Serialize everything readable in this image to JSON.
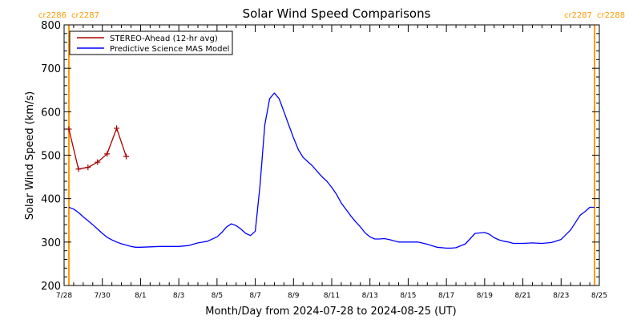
{
  "chart_data": {
    "type": "line",
    "title": "Solar Wind Speed Comparisons",
    "xlabel": "Month/Day from 2024-07-28 to 2024-08-25 (UT)",
    "ylabel": "Solar Wind Speed (km/s)",
    "xlim": [
      0,
      28
    ],
    "ylim": [
      200,
      800
    ],
    "yticks": [
      200,
      300,
      400,
      500,
      600,
      700,
      800
    ],
    "xticks": [
      {
        "x": 0,
        "label": "7/28"
      },
      {
        "x": 2,
        "label": "7/30"
      },
      {
        "x": 4,
        "label": "8/1"
      },
      {
        "x": 6,
        "label": "8/3"
      },
      {
        "x": 8,
        "label": "8/5"
      },
      {
        "x": 10,
        "label": "8/7"
      },
      {
        "x": 12,
        "label": "8/9"
      },
      {
        "x": 14,
        "label": "8/11"
      },
      {
        "x": 16,
        "label": "8/13"
      },
      {
        "x": 18,
        "label": "8/15"
      },
      {
        "x": 20,
        "label": "8/17"
      },
      {
        "x": 22,
        "label": "8/19"
      },
      {
        "x": 24,
        "label": "8/21"
      },
      {
        "x": 26,
        "label": "8/23"
      },
      {
        "x": 28,
        "label": "8/25"
      }
    ],
    "legend_position": "top-left",
    "grid": false,
    "carrington_rotations": [
      {
        "x": 0.25,
        "left_label": "cr2286",
        "right_label": "cr2287",
        "color": "#ff9900"
      },
      {
        "x": 27.75,
        "left_label": "cr2287",
        "right_label": "cr2288",
        "color": "#ff9900"
      }
    ],
    "series": [
      {
        "name": "STEREO-Ahead (12-hr avg)",
        "color": "#aa0000",
        "marker": "plus",
        "x": [
          0.25,
          0.75,
          1.25,
          1.75,
          2.25,
          2.75,
          3.25
        ],
        "y": [
          560,
          468,
          472,
          484,
          503,
          562,
          497
        ]
      },
      {
        "name": "Predictive Science MAS Model",
        "color": "#0000ff",
        "marker": "none",
        "x": [
          0.25,
          0.5,
          0.75,
          1.0,
          1.25,
          1.5,
          1.75,
          2.0,
          2.25,
          2.5,
          2.75,
          3.0,
          3.25,
          3.5,
          3.75,
          4.0,
          4.5,
          5.0,
          5.5,
          6.0,
          6.5,
          7.0,
          7.5,
          8.0,
          8.25,
          8.5,
          8.75,
          9.0,
          9.25,
          9.5,
          9.75,
          10.0,
          10.25,
          10.5,
          10.75,
          11.0,
          11.25,
          11.5,
          11.75,
          12.0,
          12.25,
          12.5,
          12.75,
          13.0,
          13.25,
          13.5,
          13.75,
          14.0,
          14.25,
          14.5,
          14.75,
          15.0,
          15.25,
          15.5,
          15.75,
          16.0,
          16.25,
          16.5,
          16.75,
          17.0,
          17.25,
          17.5,
          18.0,
          18.5,
          19.0,
          19.5,
          20.0,
          20.25,
          20.5,
          21.0,
          21.5,
          22.0,
          22.25,
          22.5,
          22.75,
          23.0,
          23.25,
          23.5,
          24.0,
          24.5,
          25.0,
          25.5,
          26.0,
          26.5,
          27.0,
          27.25,
          27.5,
          27.75
        ],
        "y": [
          380,
          376,
          368,
          358,
          349,
          340,
          330,
          320,
          311,
          305,
          300,
          296,
          293,
          290,
          288,
          288,
          289,
          290,
          290,
          290,
          292,
          298,
          302,
          312,
          322,
          335,
          342,
          338,
          330,
          320,
          315,
          325,
          430,
          570,
          630,
          643,
          630,
          600,
          570,
          540,
          513,
          495,
          485,
          475,
          462,
          450,
          440,
          426,
          410,
          390,
          375,
          360,
          347,
          335,
          321,
          312,
          307,
          307,
          308,
          306,
          303,
          300,
          300,
          300,
          295,
          288,
          286,
          286,
          287,
          296,
          320,
          322,
          318,
          310,
          305,
          302,
          300,
          297,
          297,
          298,
          297,
          299,
          306,
          328,
          362,
          370,
          380,
          380
        ]
      }
    ]
  }
}
